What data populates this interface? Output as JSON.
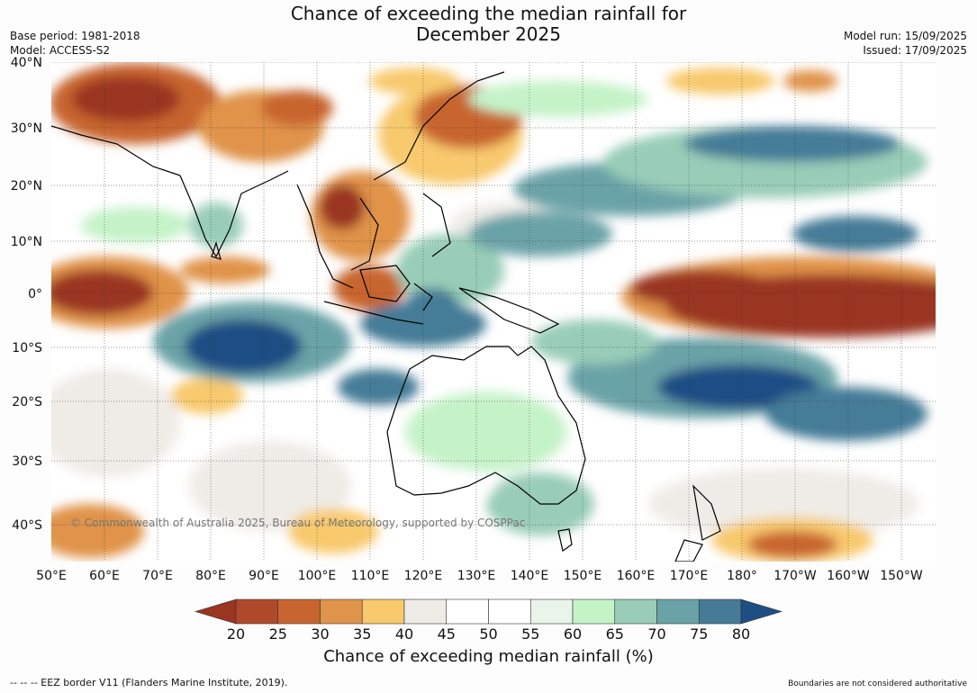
{
  "title_line1": "Chance of exceeding the median rainfall for",
  "title_line2": "December 2025",
  "base_period": "Base period: 1981-2018",
  "model": "Model: ACCESS-S2",
  "model_run": "Model run: 15/09/2025",
  "issued": "Issued: 17/09/2025",
  "lat_labels": [
    "40°N",
    "30°N",
    "20°N",
    "10°N",
    "0°",
    "10°S",
    "20°S",
    "30°S",
    "40°S"
  ],
  "lon_labels": [
    "50°E",
    "60°E",
    "70°E",
    "80°E",
    "90°E",
    "100°E",
    "110°E",
    "120°E",
    "130°E",
    "140°E",
    "150°E",
    "160°E",
    "170°E",
    "180°",
    "170°W",
    "160°W",
    "150°W"
  ],
  "copyright": "© Commonwealth of Australia 2025, Bureau of Meteorology, supported by COSPPac",
  "colorbar": {
    "ticks": [
      "20",
      "25",
      "30",
      "35",
      "40",
      "45",
      "50",
      "55",
      "60",
      "65",
      "70",
      "75",
      "80"
    ],
    "colors": [
      "#9a3522",
      "#b0482a",
      "#c8652f",
      "#e0934a",
      "#f8c96d",
      "#efece7",
      "#ffffff",
      "#ffffff",
      "#e9f5ea",
      "#c5f3c8",
      "#99cdb7",
      "#6aa3a7",
      "#457b97",
      "#1d4e84"
    ],
    "label": "Chance of exceeding median rainfall (%)"
  },
  "footer_left": "--  --  -- EEZ border V11 (Flanders Marine Institute, 2019).",
  "footer_right": "Boundaries are not considered authoritative"
}
